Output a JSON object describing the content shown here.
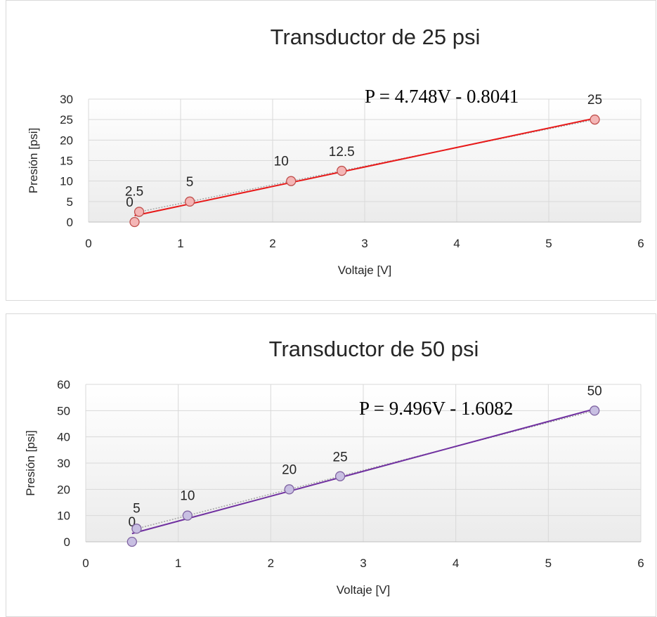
{
  "chart_data": [
    {
      "type": "scatter",
      "title": "Transductor de 25 psi",
      "xlabel": "Voltaje [V]",
      "ylabel": "Presión [psi]",
      "xlim": [
        0,
        6
      ],
      "ylim": [
        0,
        30
      ],
      "xticks": [
        "0",
        "1",
        "2",
        "3",
        "4",
        "5",
        "6"
      ],
      "yticks": [
        "0",
        "5",
        "10",
        "15",
        "20",
        "25",
        "30"
      ],
      "grid": true,
      "legend": "none",
      "points": [
        {
          "x": 0.5,
          "y": 0,
          "label": "0"
        },
        {
          "x": 0.55,
          "y": 2.5,
          "label": "2.5"
        },
        {
          "x": 1.1,
          "y": 5,
          "label": "5"
        },
        {
          "x": 2.2,
          "y": 10,
          "label": "10"
        },
        {
          "x": 2.75,
          "y": 12.5,
          "label": "12.5"
        },
        {
          "x": 5.5,
          "y": 25,
          "label": "25"
        }
      ],
      "fit": {
        "slope": 4.748,
        "intercept": -0.8041,
        "equation": "P = 4.748V - 0.8041"
      },
      "colors": {
        "line": "#e81919",
        "marker_fill": "#f4b6b6",
        "marker_stroke": "#c0504d",
        "trend": "#a6a6a6"
      }
    },
    {
      "type": "scatter",
      "title": "Transductor de 50 psi",
      "xlabel": "Voltaje [V]",
      "ylabel": "Presión [psi]",
      "xlim": [
        0,
        6
      ],
      "ylim": [
        0,
        60
      ],
      "xticks": [
        "0",
        "1",
        "2",
        "3",
        "4",
        "5",
        "6"
      ],
      "yticks": [
        "0",
        "10",
        "20",
        "30",
        "40",
        "50",
        "60"
      ],
      "grid": true,
      "legend": "none",
      "points": [
        {
          "x": 0.5,
          "y": 0,
          "label": "0"
        },
        {
          "x": 0.55,
          "y": 5,
          "label": "5"
        },
        {
          "x": 1.1,
          "y": 10,
          "label": "10"
        },
        {
          "x": 2.2,
          "y": 20,
          "label": "20"
        },
        {
          "x": 2.75,
          "y": 25,
          "label": "25"
        },
        {
          "x": 5.5,
          "y": 50,
          "label": "50"
        }
      ],
      "fit": {
        "slope": 9.496,
        "intercept": -1.6082,
        "equation": "P = 9.496V - 1.6082"
      },
      "colors": {
        "line": "#7030a0",
        "marker_fill": "#c8bfe2",
        "marker_stroke": "#8064a2",
        "trend": "#a6a6a6"
      }
    }
  ]
}
